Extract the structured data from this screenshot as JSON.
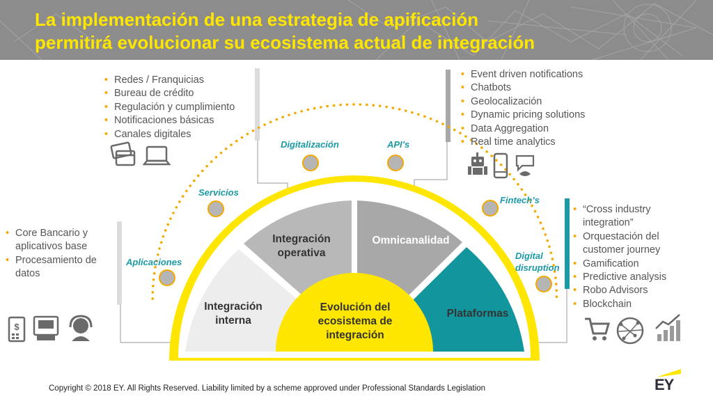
{
  "header": {
    "title_line1": "La implementación de una estrategia de apificación",
    "title_line2": "permitirá evolucionar su ecosistema actual de integración"
  },
  "lists": {
    "top_left": [
      "Redes / Franquicias",
      "Bureau de crédito",
      "Regulación y cumplimiento",
      "Notificaciones básicas",
      "Canales digitales"
    ],
    "top_right": [
      "Event driven notifications",
      "Chatbots",
      "Geolocalización",
      "Dynamic pricing solutions",
      "Data Aggregation",
      "Real time analytics"
    ],
    "left": [
      "Core Bancario y aplicativos base",
      "Procesamiento de datos"
    ],
    "right": [
      "“Cross industry integration”",
      "Orquestación del customer journey",
      "Gamification",
      "Predictive analysis",
      "Robo Advisors",
      "Blockchain"
    ]
  },
  "stages": {
    "aplicaciones": "Aplicaciones",
    "servicios": "Servicios",
    "digitalizacion": "Digitalización",
    "apis": "API’s",
    "fintechs": "Fintech’s",
    "digital_disruption": "Digital disruption"
  },
  "segments": {
    "interna": "Integración interna",
    "operativa": "Integración operativa",
    "omnicanalidad": "Omnicanalidad",
    "plataformas": "Plataformas",
    "center": "Evolución del ecosistema de integración"
  },
  "colors": {
    "yellow": "#ffe600",
    "gold": "#f5a800",
    "teal": "#1a9aa6",
    "teal_dark": "#13959e",
    "gray_light": "#ededed",
    "gray_mid": "#b8b8b8",
    "gray_dark": "#a8a8a8",
    "header_gray": "#8c8c8c"
  },
  "icons": {
    "top_left": [
      "credit-card-icon",
      "laptop-icon"
    ],
    "top_right": [
      "robot-icon",
      "smartphone-icon",
      "speech-bird-icon"
    ],
    "left": [
      "pos-terminal-icon",
      "atm-icon",
      "support-agent-icon"
    ],
    "right": [
      "shopping-cart-icon",
      "globe-icon",
      "growth-chart-icon"
    ]
  },
  "footer": {
    "copyright": "Copyright © 2018 EY. All Rights Reserved. Liability limited by a scheme approved under Professional Standards Legislation",
    "logo": "EY"
  }
}
